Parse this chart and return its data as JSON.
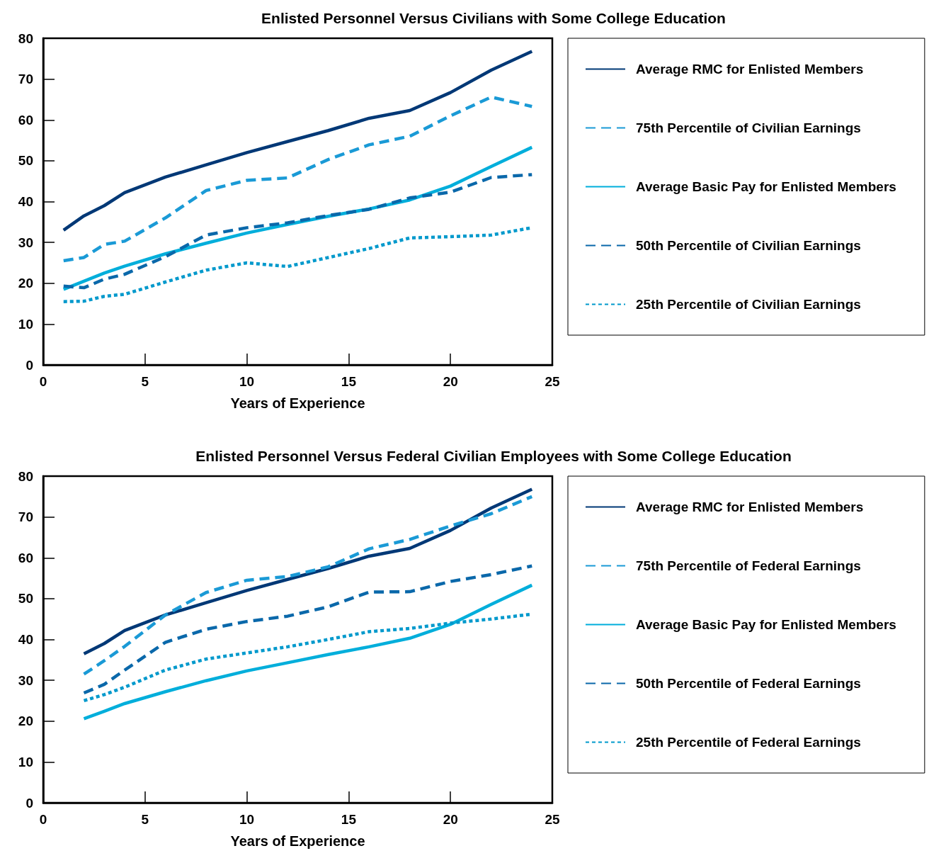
{
  "chart_data": [
    {
      "type": "line",
      "title": "Enlisted Personnel Versus Civilians with Some College Education",
      "xlabel": "Years of Experience",
      "x": [
        1,
        2,
        3,
        4,
        6,
        8,
        10,
        12,
        14,
        16,
        18,
        20,
        22,
        24
      ],
      "xlim": [
        0,
        25
      ],
      "xticks": [
        0,
        5,
        10,
        15,
        20,
        25
      ],
      "ylim": [
        0,
        80
      ],
      "yticks": [
        0,
        10,
        20,
        30,
        40,
        50,
        60,
        70,
        80
      ],
      "grid": false,
      "legend": "right",
      "marker": "none",
      "series": [
        {
          "name": "Average RMC for Enlisted Members",
          "color": "#003876",
          "line_style": "solid",
          "values": [
            33,
            36.5,
            39,
            42.2,
            46,
            49,
            52,
            54.7,
            57.4,
            60.4,
            62.3,
            66.7,
            72.2,
            76.8
          ]
        },
        {
          "name": "75th Percentile of Civilian Earnings",
          "color": "#1a9ad6",
          "line_style": "dashed",
          "values": [
            25.5,
            26.3,
            29.5,
            30.3,
            36,
            42.7,
            45.2,
            45.8,
            50.3,
            53.9,
            56,
            61,
            65.6,
            63.3
          ]
        },
        {
          "name": "Average Basic Pay for Enlisted Members",
          "color": "#00aedb",
          "line_style": "solid",
          "values": [
            18.5,
            20.5,
            22.5,
            24.2,
            27.2,
            29.8,
            32.3,
            34.4,
            36.4,
            38.2,
            40.4,
            43.8,
            48.6,
            53.3
          ]
        },
        {
          "name": "50th Percentile of Civilian Earnings",
          "color": "#0a68aa",
          "line_style": "dashed",
          "values": [
            19.3,
            18.9,
            21,
            22.2,
            26.5,
            31.8,
            33.6,
            34.8,
            36.6,
            38.1,
            40.9,
            42.3,
            45.9,
            46.6
          ]
        },
        {
          "name": "25th Percentile of Civilian Earnings",
          "color": "#0099cc",
          "line_style": "dotted",
          "values": [
            15.5,
            15.6,
            16.8,
            17.3,
            20.3,
            23.2,
            25,
            24.1,
            26.3,
            28.5,
            31.1,
            31.4,
            31.8,
            33.6
          ]
        }
      ]
    },
    {
      "type": "line",
      "title": "Enlisted Personnel Versus Federal Civilian Employees with Some College Education",
      "xlabel": "Years of Experience",
      "x": [
        2,
        3,
        4,
        6,
        8,
        10,
        12,
        14,
        16,
        18,
        20,
        22,
        24
      ],
      "xlim": [
        0,
        25
      ],
      "xticks": [
        0,
        5,
        10,
        15,
        20,
        25
      ],
      "ylim": [
        0,
        80
      ],
      "yticks": [
        0,
        10,
        20,
        30,
        40,
        50,
        60,
        70,
        80
      ],
      "grid": false,
      "legend": "right",
      "marker": "none",
      "series": [
        {
          "name": "Average RMC for Enlisted Members",
          "color": "#003876",
          "line_style": "solid",
          "values": [
            36.5,
            39,
            42.2,
            46,
            49,
            52,
            54.7,
            57.4,
            60.4,
            62.3,
            66.7,
            72.2,
            76.8
          ]
        },
        {
          "name": "75th Percentile of Federal Earnings",
          "color": "#1a9ad6",
          "line_style": "dashed",
          "values": [
            31.5,
            34.8,
            38.3,
            46,
            51.5,
            54.5,
            55.4,
            57.8,
            62.2,
            64.5,
            67.8,
            70.8,
            75
          ]
        },
        {
          "name": "Average Basic Pay for Enlisted Members",
          "color": "#00aedb",
          "line_style": "solid",
          "values": [
            20.6,
            22.4,
            24.3,
            27.2,
            29.9,
            32.3,
            34.3,
            36.3,
            38.2,
            40.3,
            43.7,
            48.6,
            53.3
          ]
        },
        {
          "name": "50th Percentile of Federal Earnings",
          "color": "#0a68aa",
          "line_style": "dashed",
          "values": [
            26.9,
            29,
            32.5,
            39.3,
            42.5,
            44.4,
            45.7,
            48,
            51.6,
            51.7,
            54.2,
            55.9,
            58
          ]
        },
        {
          "name": "25th Percentile of Federal Earnings",
          "color": "#0099cc",
          "line_style": "dotted",
          "values": [
            25,
            26.5,
            28.3,
            32.5,
            35.2,
            36.7,
            38.2,
            40,
            41.9,
            42.7,
            44,
            45,
            46.2
          ]
        }
      ]
    }
  ]
}
